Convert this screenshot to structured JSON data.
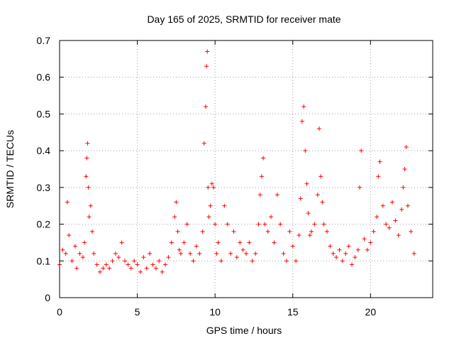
{
  "chart_data": {
    "type": "scatter",
    "title": "Day 165 of 2025, SRMTID for receiver mate",
    "xlabel": "GPS time / hours",
    "ylabel": "SRMTID / TECUs",
    "xlim": [
      0,
      24
    ],
    "ylim": [
      0,
      0.7
    ],
    "grid": true,
    "marker": "+",
    "marker_color": "#ff0000",
    "xticks": [
      0,
      5,
      10,
      15,
      20
    ],
    "xtick_labels": [
      "0",
      "5",
      "10",
      "15",
      "20"
    ],
    "yticks": [
      0,
      0.1,
      0.2,
      0.3,
      0.4,
      0.5,
      0.6,
      0.7
    ],
    "ytick_labels": [
      "0",
      "0.1",
      "0.2",
      "0.3",
      "0.4",
      "0.5",
      "0.6",
      "0.7"
    ],
    "series": [
      {
        "name": "SRMTID",
        "x": [
          0.0,
          0.2,
          0.4,
          0.5,
          0.6,
          0.8,
          1.0,
          1.1,
          1.3,
          1.5,
          1.6,
          1.7,
          1.75,
          1.8,
          1.85,
          1.9,
          2.0,
          2.1,
          2.2,
          2.4,
          2.6,
          2.8,
          3.0,
          3.2,
          3.4,
          3.6,
          3.8,
          4.0,
          4.2,
          4.4,
          4.6,
          4.8,
          5.0,
          5.2,
          5.4,
          5.6,
          5.8,
          6.0,
          6.2,
          6.4,
          6.6,
          6.8,
          7.0,
          7.2,
          7.4,
          7.5,
          7.6,
          7.7,
          7.8,
          8.0,
          8.2,
          8.4,
          8.6,
          8.8,
          9.0,
          9.2,
          9.3,
          9.4,
          9.45,
          9.5,
          9.55,
          9.6,
          9.7,
          9.8,
          9.9,
          10.0,
          10.1,
          10.2,
          10.4,
          10.6,
          10.8,
          11.0,
          11.2,
          11.4,
          11.6,
          11.8,
          12.0,
          12.2,
          12.4,
          12.6,
          12.8,
          12.9,
          13.0,
          13.1,
          13.2,
          13.4,
          13.6,
          13.8,
          14.0,
          14.2,
          14.4,
          14.6,
          14.8,
          15.0,
          15.2,
          15.4,
          15.5,
          15.6,
          15.7,
          15.8,
          15.9,
          16.0,
          16.1,
          16.2,
          16.4,
          16.6,
          16.7,
          16.8,
          16.9,
          17.0,
          17.2,
          17.4,
          17.6,
          17.8,
          18.0,
          18.2,
          18.4,
          18.6,
          18.8,
          19.0,
          19.2,
          19.3,
          19.4,
          19.6,
          19.8,
          20.0,
          20.2,
          20.4,
          20.5,
          20.6,
          20.8,
          21.0,
          21.2,
          21.4,
          21.6,
          21.8,
          22.0,
          22.1,
          22.2,
          22.3,
          22.4,
          22.6,
          22.8
        ],
        "y": [
          0.09,
          0.13,
          0.12,
          0.26,
          0.17,
          0.1,
          0.14,
          0.08,
          0.12,
          0.11,
          0.15,
          0.33,
          0.38,
          0.42,
          0.3,
          0.22,
          0.25,
          0.18,
          0.12,
          0.09,
          0.07,
          0.08,
          0.09,
          0.08,
          0.1,
          0.12,
          0.11,
          0.15,
          0.1,
          0.09,
          0.08,
          0.1,
          0.09,
          0.07,
          0.11,
          0.08,
          0.12,
          0.09,
          0.08,
          0.1,
          0.07,
          0.09,
          0.11,
          0.15,
          0.22,
          0.26,
          0.18,
          0.13,
          0.12,
          0.15,
          0.2,
          0.12,
          0.1,
          0.14,
          0.12,
          0.18,
          0.42,
          0.52,
          0.63,
          0.67,
          0.3,
          0.22,
          0.25,
          0.31,
          0.3,
          0.2,
          0.12,
          0.15,
          0.1,
          0.25,
          0.2,
          0.12,
          0.18,
          0.11,
          0.15,
          0.13,
          0.12,
          0.15,
          0.1,
          0.12,
          0.2,
          0.28,
          0.33,
          0.38,
          0.2,
          0.18,
          0.22,
          0.15,
          0.28,
          0.2,
          0.12,
          0.1,
          0.18,
          0.14,
          0.1,
          0.17,
          0.27,
          0.48,
          0.52,
          0.4,
          0.31,
          0.23,
          0.17,
          0.18,
          0.2,
          0.28,
          0.46,
          0.33,
          0.26,
          0.2,
          0.18,
          0.14,
          0.12,
          0.11,
          0.13,
          0.1,
          0.12,
          0.14,
          0.09,
          0.11,
          0.13,
          0.3,
          0.4,
          0.16,
          0.13,
          0.15,
          0.18,
          0.22,
          0.33,
          0.37,
          0.25,
          0.2,
          0.19,
          0.26,
          0.21,
          0.17,
          0.24,
          0.3,
          0.35,
          0.41,
          0.25,
          0.18,
          0.12
        ]
      }
    ]
  }
}
